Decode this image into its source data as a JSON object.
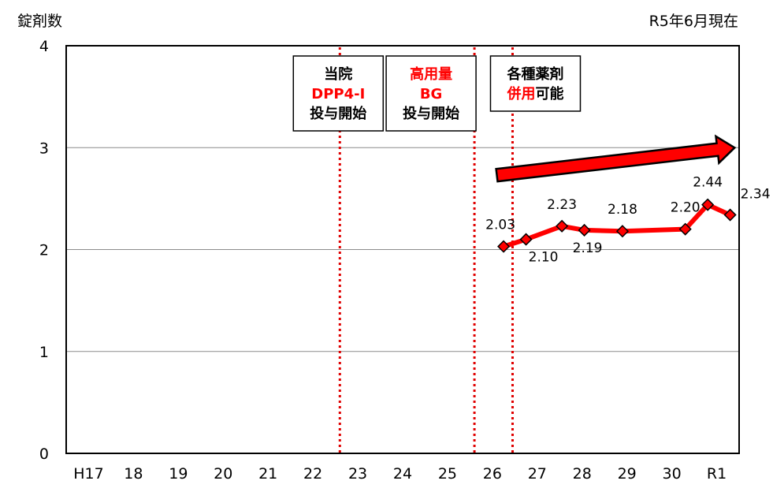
{
  "header": {
    "left_label": "錠剤数",
    "right_label": "R5年6月現在"
  },
  "annotations": [
    {
      "lines": [
        {
          "parts": [
            {
              "text": "当院",
              "color": "#000000"
            }
          ]
        },
        {
          "parts": [
            {
              "text": "DPP4-I",
              "color": "#ff0000"
            }
          ]
        },
        {
          "parts": [
            {
              "text": "投与開始",
              "color": "#000000"
            }
          ]
        }
      ]
    },
    {
      "lines": [
        {
          "parts": [
            {
              "text": "高用量",
              "color": "#ff0000"
            }
          ]
        },
        {
          "parts": [
            {
              "text": "BG",
              "color": "#ff0000"
            }
          ]
        },
        {
          "parts": [
            {
              "text": "投与開始",
              "color": "#000000"
            }
          ]
        }
      ]
    },
    {
      "lines": [
        {
          "parts": [
            {
              "text": "各種薬剤",
              "color": "#000000"
            }
          ]
        },
        {
          "parts": [
            {
              "text": "併用",
              "color": "#ff0000"
            },
            {
              "text": "可能",
              "color": "#000000"
            }
          ]
        }
      ]
    }
  ],
  "chart_data": {
    "type": "line",
    "categories": [
      "H17",
      "18",
      "19",
      "20",
      "21",
      "22",
      "23",
      "24",
      "25",
      "26",
      "27",
      "28",
      "29",
      "30",
      "R1"
    ],
    "ylim": [
      0,
      4
    ],
    "yticks": [
      "0",
      "1",
      "2",
      "3",
      "4"
    ],
    "grid": true,
    "series": [
      {
        "color": "#ff0000",
        "points": [
          {
            "x": 26.25,
            "y": 2.03,
            "label": "2.03"
          },
          {
            "x": 26.75,
            "y": 2.1,
            "label": "2.10"
          },
          {
            "x": 27.55,
            "y": 2.23,
            "label": "2.23"
          },
          {
            "x": 28.05,
            "y": 2.19,
            "label": "2.19"
          },
          {
            "x": 28.9,
            "y": 2.18,
            "label": "2.18"
          },
          {
            "x": 30.3,
            "y": 2.2,
            "label": "2.20"
          },
          {
            "x": 30.8,
            "y": 2.44,
            "label": "2.44"
          },
          {
            "x": 31.3,
            "y": 2.34,
            "label": "2.34"
          }
        ]
      }
    ],
    "vlines": [
      22.6,
      25.6,
      26.45
    ],
    "trend_arrow": {
      "from": [
        26.1,
        2.73
      ],
      "to": [
        31.4,
        3.0
      ],
      "color": "#ff0000"
    }
  }
}
